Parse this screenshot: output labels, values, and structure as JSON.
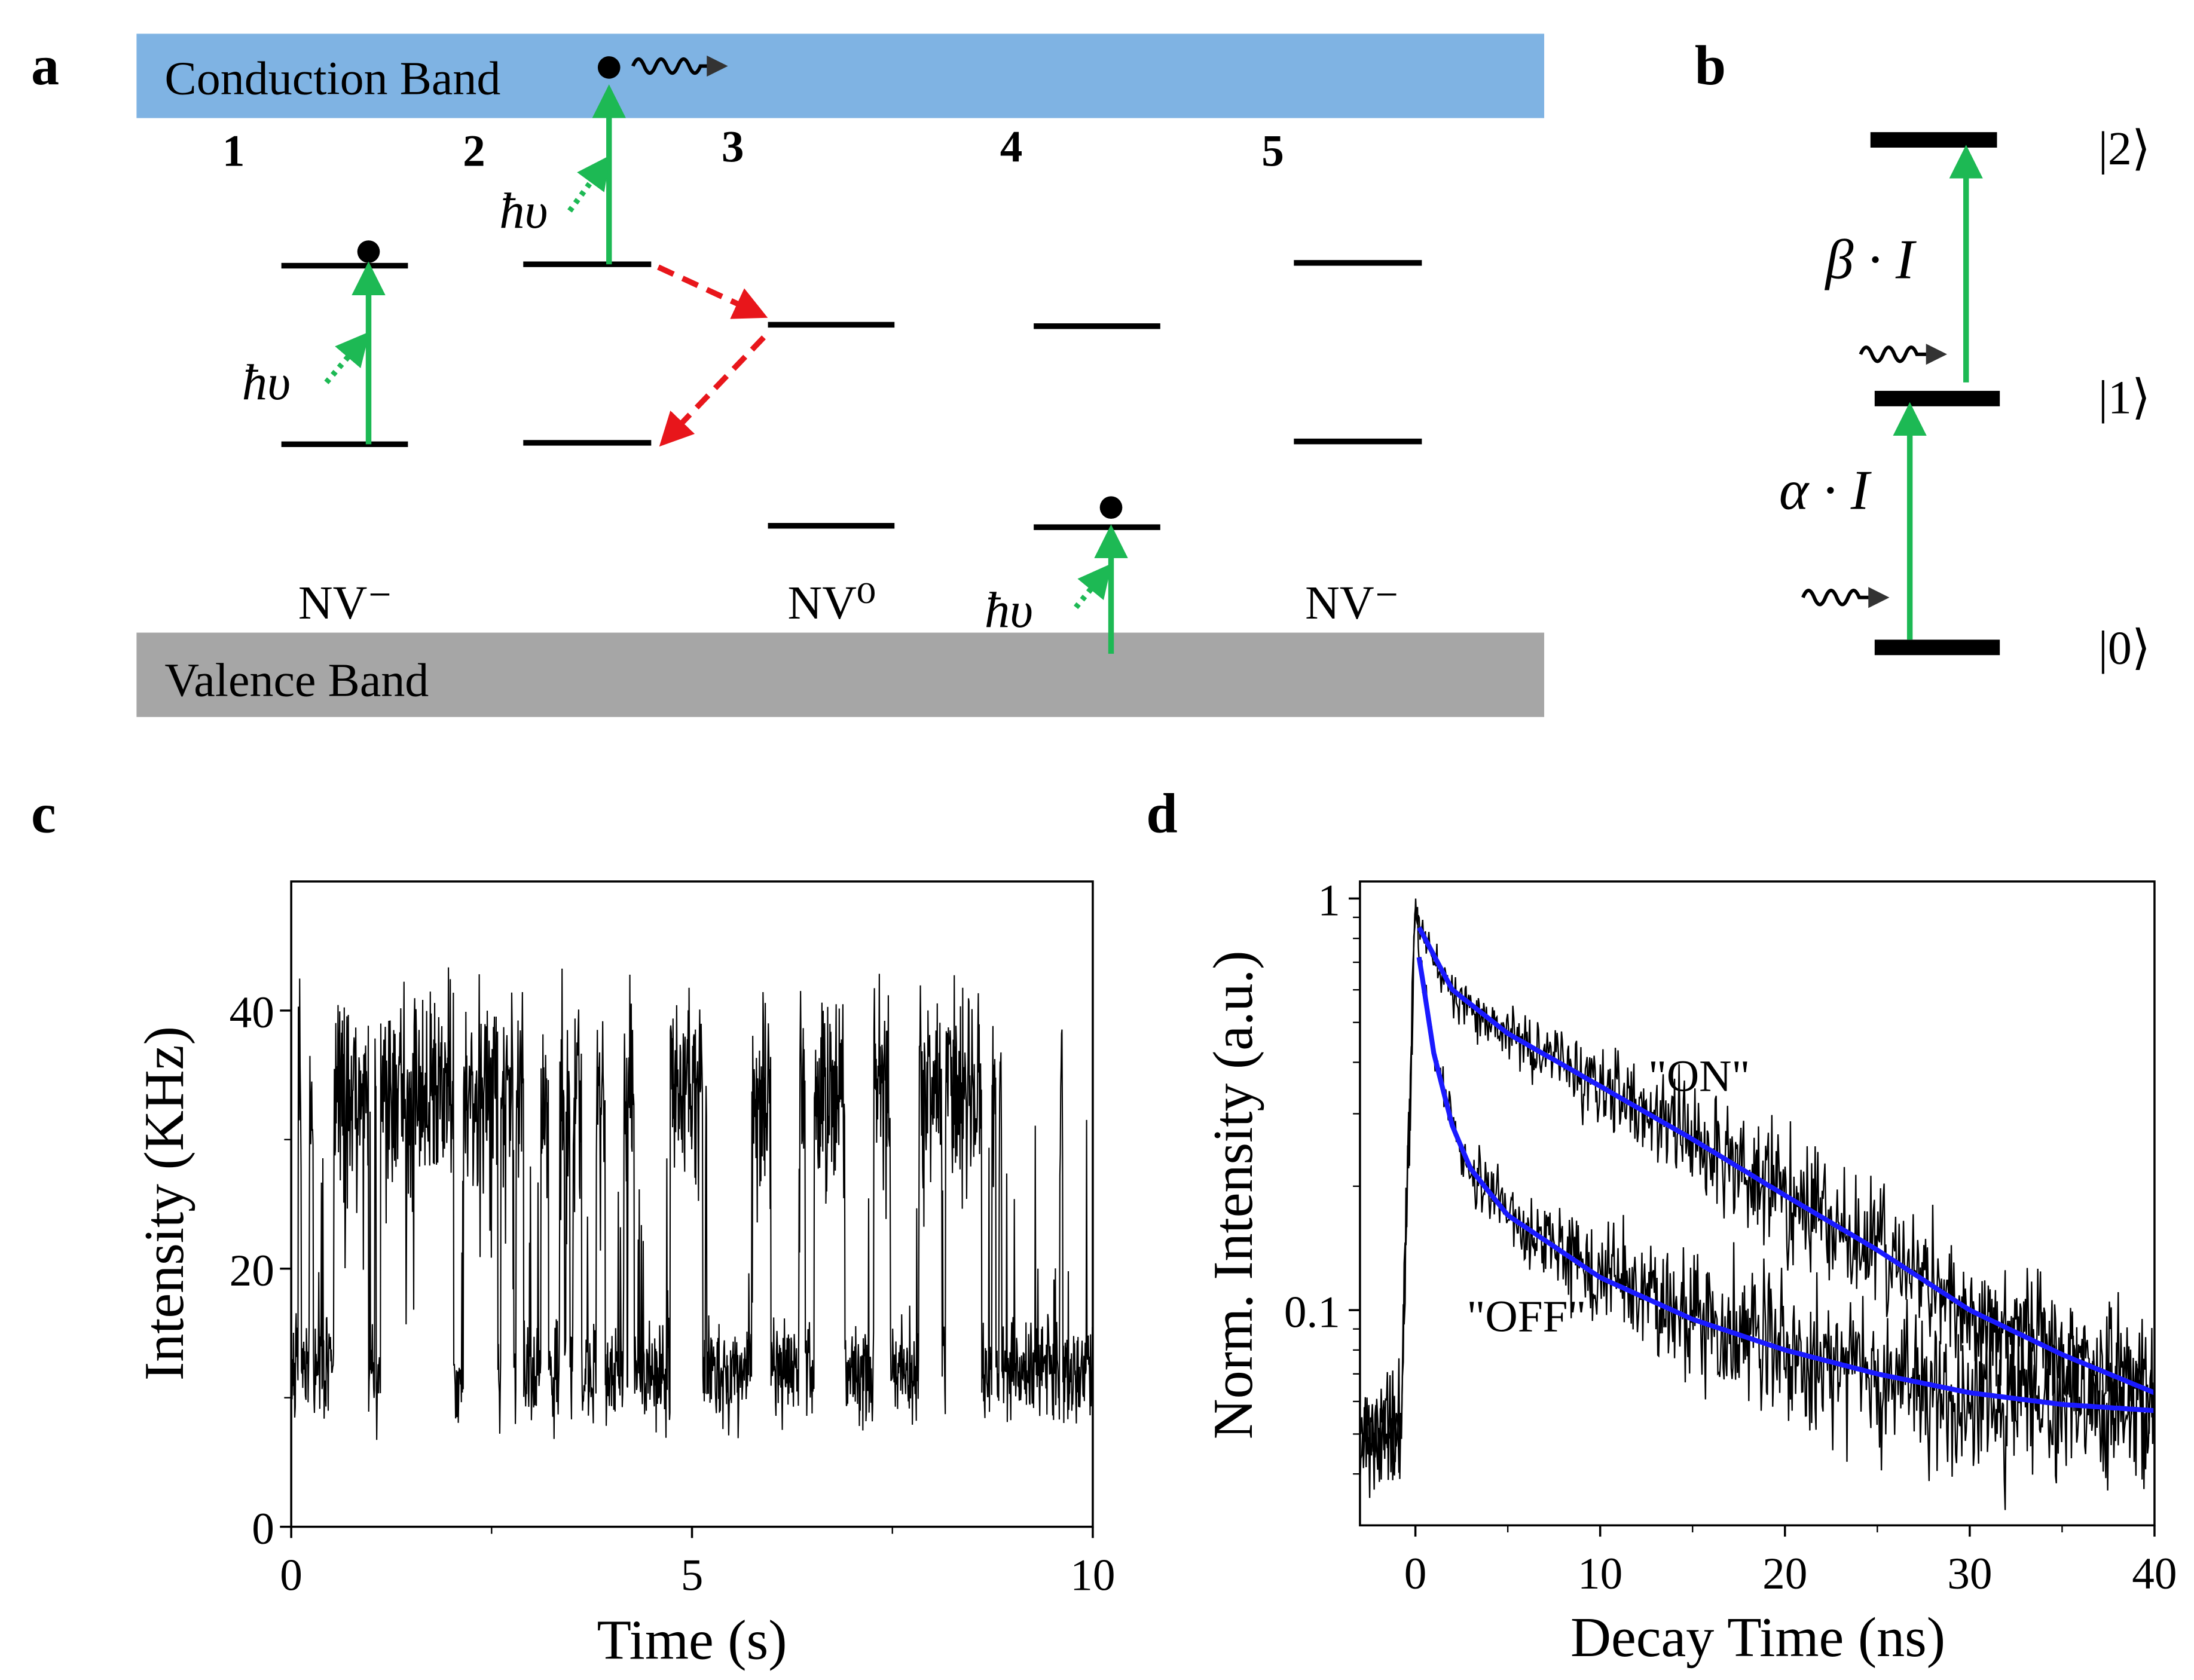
{
  "panel_labels": {
    "a": "a",
    "b": "b",
    "c": "c",
    "d": "d"
  },
  "panel_a": {
    "conduction_band": "Conduction Band",
    "valence_band": "Valence Band",
    "step_numbers": [
      "1",
      "2",
      "3",
      "4",
      "5"
    ],
    "photon_label": "ħυ",
    "state_labels": {
      "s1": "NV⁻",
      "s3": "NV⁰",
      "s5": "NV⁻"
    },
    "colors": {
      "conduction": "#7fb3e3",
      "valence": "#a6a6a6",
      "excitation": "#1db954",
      "relaxation": "#e8161b"
    }
  },
  "panel_b": {
    "levels": [
      "|2⟩",
      "|1⟩",
      "|0⟩"
    ],
    "rate_upper": "β · I",
    "rate_lower": "α · I"
  },
  "chart_data": [
    {
      "id": "c",
      "type": "line",
      "title": "",
      "xlabel": "Time (s)",
      "ylabel": "Intensity (KHz)",
      "xlim": [
        0,
        10
      ],
      "ylim": [
        0,
        50
      ],
      "xticks": [
        "0",
        "5",
        "10"
      ],
      "xtick_values": [
        0,
        5,
        10
      ],
      "yticks": [
        "0",
        "20",
        "40"
      ],
      "ytick_values": [
        0,
        20,
        40
      ],
      "series": [
        {
          "name": "blinking trace",
          "description_levels": {
            "on_level_khz": 34,
            "off_level_khz": 12,
            "peak_khz": 45,
            "min_khz": 6
          },
          "color": "#000000"
        }
      ]
    },
    {
      "id": "d",
      "type": "line",
      "title": "",
      "xlabel": "Decay Time (ns)",
      "ylabel": "Norm. Intensity (a.u.)",
      "xlim": [
        -3,
        40
      ],
      "ylim": [
        0.03,
        1.1
      ],
      "yscale": "log",
      "xticks": [
        "0",
        "10",
        "20",
        "30",
        "40"
      ],
      "xtick_values": [
        0,
        10,
        20,
        30,
        40
      ],
      "yticks": [
        "0.1",
        "1"
      ],
      "ytick_values": [
        0.1,
        1
      ],
      "annotations": [
        "\"ON\"",
        "\"OFF\""
      ],
      "series": [
        {
          "name": "ON fit",
          "color": "#1a1aff",
          "x": [
            0.2,
            2,
            5,
            10,
            15,
            20,
            25,
            30,
            35,
            40
          ],
          "y": [
            0.85,
            0.6,
            0.47,
            0.35,
            0.26,
            0.19,
            0.14,
            0.1,
            0.078,
            0.063
          ]
        },
        {
          "name": "OFF fit",
          "color": "#1a1aff",
          "x": [
            0.2,
            1,
            2,
            3,
            5,
            10,
            15,
            20,
            25,
            30,
            35,
            40
          ],
          "y": [
            0.72,
            0.42,
            0.28,
            0.22,
            0.17,
            0.12,
            0.095,
            0.08,
            0.07,
            0.063,
            0.059,
            0.057
          ]
        },
        {
          "name": "pre-pulse background",
          "color": "#000000",
          "x": [
            -3,
            -0.8
          ],
          "y": [
            0.05,
            0.05
          ]
        }
      ]
    }
  ]
}
